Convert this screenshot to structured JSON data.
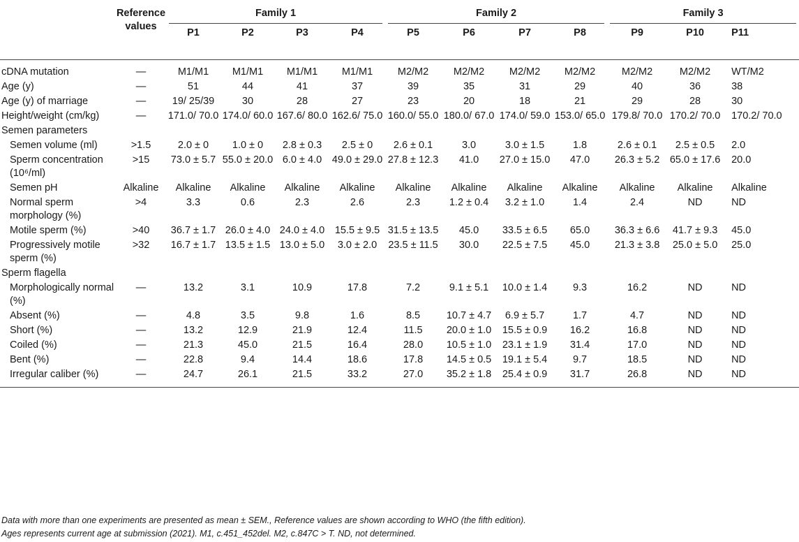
{
  "header": {
    "ref_line1": "Reference",
    "ref_line2": "values",
    "families": [
      "Family 1",
      "Family 2",
      "Family 3"
    ],
    "patients": [
      "P1",
      "P2",
      "P3",
      "P4",
      "P5",
      "P6",
      "P7",
      "P8",
      "P9",
      "P10",
      "P11"
    ]
  },
  "rows": [
    {
      "label": "cDNA mutation",
      "ref": "—",
      "vals": [
        "M1/M1",
        "M1/M1",
        "M1/M1",
        "M1/M1",
        "M2/M2",
        "M2/M2",
        "M2/M2",
        "M2/M2",
        "M2/M2",
        "M2/M2",
        "WT/M2"
      ]
    },
    {
      "label": "Age (y)",
      "ref": "—",
      "vals": [
        "51",
        "44",
        "41",
        "37",
        "39",
        "35",
        "31",
        "29",
        "40",
        "36",
        "38"
      ]
    },
    {
      "label": "Age (y) of marriage",
      "ref": "—",
      "vals": [
        "19/ 25/39",
        "30",
        "28",
        "27",
        "23",
        "20",
        "18",
        "21",
        "29",
        "28",
        "30"
      ]
    },
    {
      "label": "Height/weight (cm/kg)",
      "ref": "—",
      "vals": [
        "171.0/ 70.0",
        "174.0/ 60.0",
        "167.6/ 80.0",
        "162.6/ 75.0",
        "160.0/ 55.0",
        "180.0/ 67.0",
        "174.0/ 59.0",
        "153.0/ 65.0",
        "179.8/ 70.0",
        "170.2/ 70.0",
        "170.2/ 70.0"
      ]
    },
    {
      "label": "Semen parameters",
      "ref": "",
      "vals": [
        "",
        "",
        "",
        "",
        "",
        "",
        "",
        "",
        "",
        "",
        ""
      ],
      "section": true
    },
    {
      "label": "Semen volume (ml)",
      "ref": ">1.5",
      "vals": [
        "2.0 ± 0",
        "1.0 ± 0",
        "2.8 ± 0.3",
        "2.5 ± 0",
        "2.6 ± 0.1",
        "3.0",
        "3.0 ± 1.5",
        "1.8",
        "2.6 ± 0.1",
        "2.5 ± 0.5",
        "2.0"
      ],
      "sub": true
    },
    {
      "label": "Sperm concentration (10⁶/ml)",
      "ref": ">15",
      "vals": [
        "73.0 ± 5.7",
        "55.0 ± 20.0",
        "6.0 ± 4.0",
        "49.0 ± 29.0",
        "27.8 ± 12.3",
        "41.0",
        "27.0 ± 15.0",
        "47.0",
        "26.3 ± 5.2",
        "65.0 ± 17.6",
        "20.0"
      ],
      "sub": true
    },
    {
      "label": "Semen pH",
      "ref": "Alkaline",
      "vals": [
        "Alkaline",
        "Alkaline",
        "Alkaline",
        "Alkaline",
        "Alkaline",
        "Alkaline",
        "Alkaline",
        "Alkaline",
        "Alkaline",
        "Alkaline",
        "Alkaline"
      ],
      "sub": true
    },
    {
      "label": "Normal sperm morphology (%)",
      "ref": ">4",
      "vals": [
        "3.3",
        "0.6",
        "2.3",
        "2.6",
        "2.3",
        "1.2 ± 0.4",
        "3.2 ± 1.0",
        "1.4",
        "2.4",
        "ND",
        "ND"
      ],
      "sub": true
    },
    {
      "label": "Motile sperm (%)",
      "ref": ">40",
      "vals": [
        "36.7 ± 1.7",
        "26.0 ± 4.0",
        "24.0 ± 4.0",
        "15.5 ± 9.5",
        "31.5 ± 13.5",
        "45.0",
        "33.5 ± 6.5",
        "65.0",
        "36.3 ± 6.6",
        "41.7 ± 9.3",
        "45.0"
      ],
      "sub": true
    },
    {
      "label": "Progressively motile sperm (%)",
      "ref": ">32",
      "vals": [
        "16.7 ± 1.7",
        "13.5 ± 1.5",
        "13.0 ± 5.0",
        "3.0 ± 2.0",
        "23.5 ± 11.5",
        "30.0",
        "22.5 ± 7.5",
        "45.0",
        "21.3 ± 3.8",
        "25.0 ± 5.0",
        "25.0"
      ],
      "sub": true
    },
    {
      "label": "Sperm flagella",
      "ref": "",
      "vals": [
        "",
        "",
        "",
        "",
        "",
        "",
        "",
        "",
        "",
        "",
        ""
      ],
      "section": true
    },
    {
      "label": "Morphologically normal (%)",
      "ref": "—",
      "vals": [
        "13.2",
        "3.1",
        "10.9",
        "17.8",
        "7.2",
        "9.1 ± 5.1",
        "10.0 ± 1.4",
        "9.3",
        "16.2",
        "ND",
        "ND"
      ],
      "sub": true
    },
    {
      "label": "Absent (%)",
      "ref": "—",
      "vals": [
        "4.8",
        "3.5",
        "9.8",
        "1.6",
        "8.5",
        "10.7 ± 4.7",
        "6.9 ± 5.7",
        "1.7",
        "4.7",
        "ND",
        "ND"
      ],
      "sub": true
    },
    {
      "label": "Short (%)",
      "ref": "—",
      "vals": [
        "13.2",
        "12.9",
        "21.9",
        "12.4",
        "11.5",
        "20.0 ± 1.0",
        "15.5 ± 0.9",
        "16.2",
        "16.8",
        "ND",
        "ND"
      ],
      "sub": true
    },
    {
      "label": "Coiled (%)",
      "ref": "—",
      "vals": [
        "21.3",
        "45.0",
        "21.5",
        "16.4",
        "28.0",
        "10.5 ± 1.0",
        "23.1 ± 1.9",
        "31.4",
        "17.0",
        "ND",
        "ND"
      ],
      "sub": true
    },
    {
      "label": "Bent (%)",
      "ref": "—",
      "vals": [
        "22.8",
        "9.4",
        "14.4",
        "18.6",
        "17.8",
        "14.5 ± 0.5",
        "19.1 ± 5.4",
        "9.7",
        "18.5",
        "ND",
        "ND"
      ],
      "sub": true
    },
    {
      "label": "Irregular caliber (%)",
      "ref": "—",
      "vals": [
        "24.7",
        "26.1",
        "21.5",
        "33.2",
        "27.0",
        "35.2 ± 1.8",
        "25.4 ± 0.9",
        "31.7",
        "26.8",
        "ND",
        "ND"
      ],
      "sub": true
    }
  ],
  "notes": {
    "line1": "Data with more than one experiments are presented as mean ± SEM., Reference values are shown according to WHO (the fifth edition).",
    "line2": "Ages represents current age at submission (2021). M1, c.451_452del. M2, c.847C > T. ND, not determined."
  }
}
